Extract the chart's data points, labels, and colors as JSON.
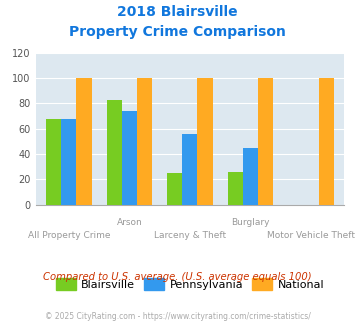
{
  "title_line1": "2018 Blairsville",
  "title_line2": "Property Crime Comparison",
  "categories": [
    "All Property Crime",
    "Arson",
    "Larceny & Theft",
    "Burglary",
    "Motor Vehicle Theft"
  ],
  "row1_labels": [
    "",
    "Arson",
    "",
    "Burglary",
    ""
  ],
  "row2_labels": [
    "All Property Crime",
    "",
    "Larceny & Theft",
    "",
    "Motor Vehicle Theft"
  ],
  "blairsville": [
    68,
    83,
    25,
    26,
    0
  ],
  "pennsylvania": [
    68,
    74,
    56,
    45,
    0
  ],
  "national": [
    100,
    100,
    100,
    100,
    100
  ],
  "color_blairsville": "#77cc22",
  "color_pennsylvania": "#3399ee",
  "color_national": "#ffaa22",
  "color_title": "#1177dd",
  "color_bg": "#dde8f0",
  "color_xlabel": "#999999",
  "ylim": [
    0,
    120
  ],
  "yticks": [
    0,
    20,
    40,
    60,
    80,
    100,
    120
  ],
  "subtitle_text": "Compared to U.S. average. (U.S. average equals 100)",
  "footer_text": "© 2025 CityRating.com - https://www.cityrating.com/crime-statistics/",
  "legend_labels": [
    "Blairsville",
    "Pennsylvania",
    "National"
  ]
}
